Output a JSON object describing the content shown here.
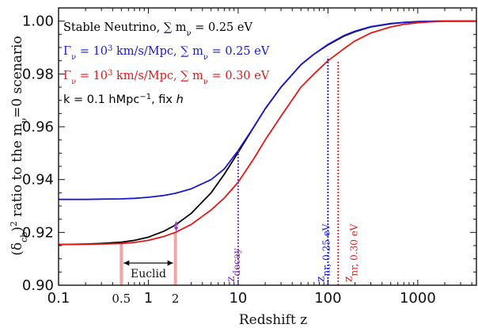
{
  "chart_data": {
    "type": "line",
    "xlabel": "Redshift  z",
    "ylabel": "(δ_cb)² ratio to the m_ν=0 scenario",
    "ylabel_parts": {
      "a": "(δ",
      "sub": "cb",
      "b": ")",
      "sup": "2",
      "c": " ratio to the m",
      "sub2": "ν",
      "d": "=0  scenario"
    },
    "xscale": "log",
    "xlim": [
      0.1,
      4500
    ],
    "ylim": [
      0.9,
      1.005
    ],
    "x_ticks": [
      {
        "value": 0.1,
        "label": "0.1"
      },
      {
        "value": 0.5,
        "label": "0.5"
      },
      {
        "value": 1,
        "label": "1"
      },
      {
        "value": 2,
        "label": "2"
      },
      {
        "value": 10,
        "label": "10"
      },
      {
        "value": 100,
        "label": "100"
      },
      {
        "value": 1000,
        "label": "1000"
      }
    ],
    "y_ticks": [
      {
        "value": 0.9,
        "label": "0.90"
      },
      {
        "value": 0.92,
        "label": "0.92"
      },
      {
        "value": 0.94,
        "label": "0.94"
      },
      {
        "value": 0.96,
        "label": "0.96"
      },
      {
        "value": 0.98,
        "label": "0.98"
      },
      {
        "value": 1.0,
        "label": "1.00"
      }
    ],
    "grid": false,
    "legend_placement": "top-left",
    "series": [
      {
        "name": "Stable Neutrino, ∑ m_ν = 0.25 eV",
        "color": "#000000",
        "x": [
          0.1,
          0.2,
          0.3,
          0.5,
          0.7,
          1,
          1.5,
          2,
          3,
          5,
          7,
          10,
          15,
          20,
          30,
          50,
          70,
          100,
          150,
          200,
          300,
          500,
          700,
          1000,
          1500,
          2000,
          3000,
          4500
        ],
        "y": [
          0.9154,
          0.9156,
          0.9158,
          0.9163,
          0.917,
          0.9182,
          0.9205,
          0.9228,
          0.9272,
          0.935,
          0.942,
          0.9503,
          0.96,
          0.9668,
          0.975,
          0.9835,
          0.9875,
          0.991,
          0.9943,
          0.996,
          0.9978,
          0.999,
          0.9995,
          0.9998,
          0.99995,
          1.0,
          1.0,
          1.0
        ]
      },
      {
        "name": "Γ_ν = 10³ km/s/Mpc, ∑ m_ν = 0.25 eV",
        "color": "#1a1acc",
        "x": [
          0.1,
          0.2,
          0.3,
          0.5,
          0.7,
          1,
          1.5,
          2,
          3,
          5,
          7,
          10,
          15,
          20,
          30,
          50,
          70,
          100,
          150,
          200,
          300,
          500,
          700,
          1000,
          1500,
          2000,
          3000,
          4500
        ],
        "y": [
          0.9325,
          0.9325,
          0.9326,
          0.9327,
          0.9329,
          0.9333,
          0.934,
          0.9348,
          0.9365,
          0.94,
          0.944,
          0.951,
          0.96,
          0.9668,
          0.975,
          0.9835,
          0.9875,
          0.9912,
          0.9945,
          0.9962,
          0.9979,
          0.9991,
          0.9995,
          0.9998,
          0.99995,
          1.0,
          1.0,
          1.0
        ]
      },
      {
        "name": "Γ_ν = 10³ km/s/Mpc, ∑ m_ν = 0.30 eV",
        "color": "#e01818",
        "x": [
          0.1,
          0.2,
          0.3,
          0.5,
          0.7,
          1,
          1.5,
          2,
          3,
          5,
          7,
          10,
          15,
          20,
          30,
          50,
          70,
          100,
          150,
          200,
          300,
          500,
          700,
          1000,
          1500,
          2000,
          3000,
          4500
        ],
        "y": [
          0.9154,
          0.9155,
          0.9156,
          0.9158,
          0.9162,
          0.917,
          0.9185,
          0.92,
          0.923,
          0.9285,
          0.933,
          0.939,
          0.948,
          0.955,
          0.964,
          0.975,
          0.98,
          0.985,
          0.9895,
          0.9925,
          0.9955,
          0.9978,
          0.9988,
          0.9994,
          0.9998,
          0.99995,
          1.0,
          1.0
        ]
      }
    ],
    "legend": {
      "stable": {
        "t1": "Stable Neutrino,  ",
        "sym": "∑",
        "t2": " m",
        "sub": "ν",
        "t3": " = 0.25 eV",
        "color": "#000000"
      },
      "decay25": {
        "t1": "Γ",
        "sub1": "ν",
        "t2": " = 10",
        "sup": "3",
        "t3": " km/s/Mpc,  ",
        "sym": "∑",
        "t4": " m",
        "sub2": "ν",
        "t5": " = 0.25 eV",
        "color": "#1a1acc"
      },
      "decay30": {
        "t1": "Γ",
        "sub1": "ν",
        "t2": " = 10",
        "sup": "3",
        "t3": " km/s/Mpc,  ",
        "sym": "∑",
        "t4": " m",
        "sub2": "ν",
        "t5": " = 0.30 eV",
        "color": "#e01818"
      },
      "kline": {
        "t1": "k = 0.1 hMpc",
        "sup": "−1",
        "t2": ",  fix ",
        "h": "h",
        "color": "#000000"
      }
    },
    "annotations": {
      "euclid": {
        "label": "Euclid",
        "x_from": 0.5,
        "x_to": 2,
        "band_color": "#f4a6a6",
        "band_top_left": 0.9163,
        "band_top_right": 0.92
      },
      "decay_gap_arrow": {
        "x": 2,
        "y_from": 0.92,
        "y_to": 0.9248,
        "color": "#8a3cc8"
      },
      "z_decay": {
        "label_main": "z",
        "label_sub": "decay",
        "x": 10,
        "y_top": 0.951,
        "color": "#7a2ab0"
      },
      "z_nr_025": {
        "label_main": "z",
        "label_sub": "nr, 0.25 eV",
        "x": 100,
        "y_top": 0.9865,
        "color": "#1a1acc"
      },
      "z_nr_030": {
        "label_main": "z",
        "label_sub": "nr, 0.30 eV",
        "x": 130,
        "y_top": 0.985,
        "color": "#e01818"
      }
    }
  }
}
